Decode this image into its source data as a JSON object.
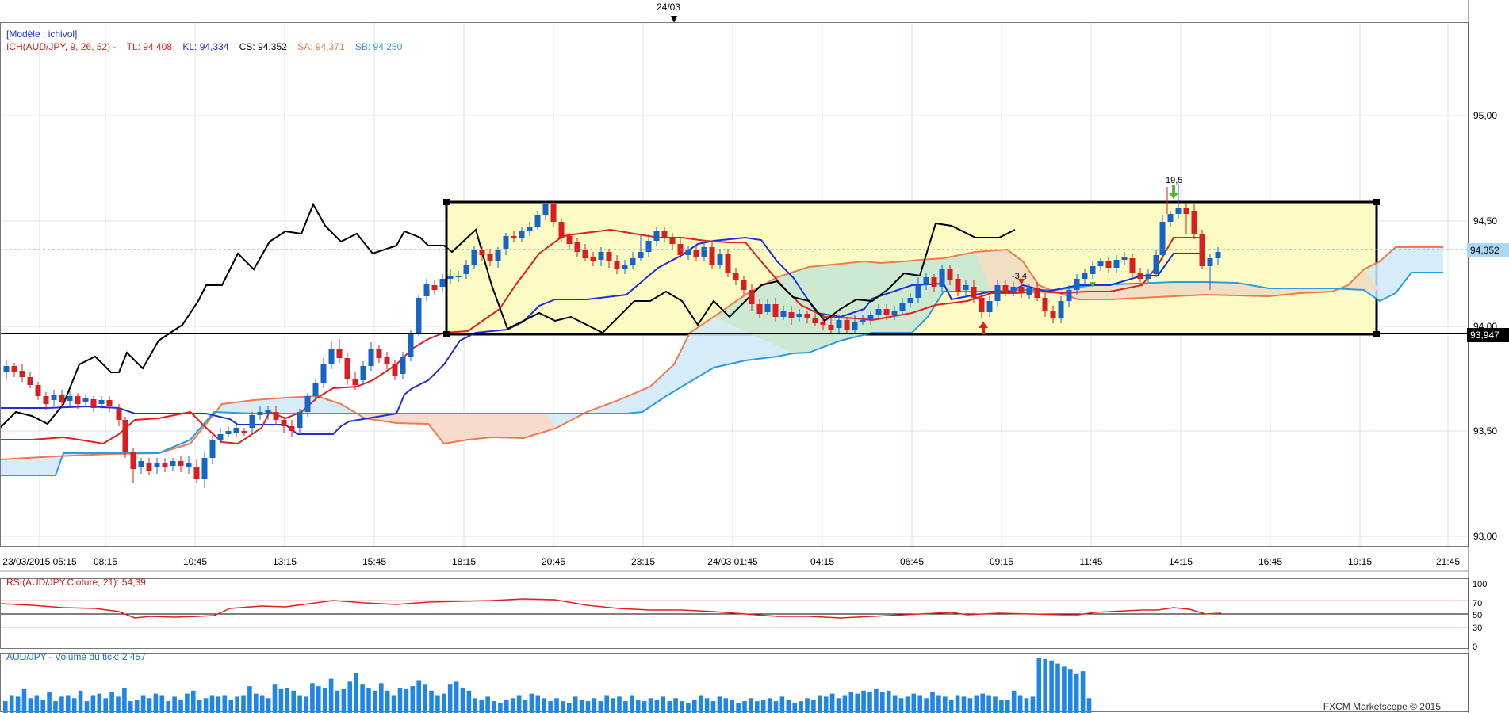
{
  "legend": {
    "model": "[Modèle : ichivol]",
    "ichimoku": [
      {
        "text": "ICH(AUD/JPY, 9, 26, 52) -",
        "color": "#e0201c"
      },
      {
        "text": "TL: 94,408",
        "color": "#e0201c"
      },
      {
        "text": "KL: 94,334",
        "color": "#1f2fd6"
      },
      {
        "text": "CS: 94,352",
        "color": "#000000"
      },
      {
        "text": "SA: 94,371",
        "color": "#f07a4a"
      },
      {
        "text": "SB: 94,250",
        "color": "#2a9ce0"
      }
    ],
    "rsi": "RSI(AUD/JPY.Cloture, 21): 54,39",
    "volume": "AUD/JPY - Volume du tick: 2 457"
  },
  "credit": "FXCM Marketscope © 2015",
  "date_marker": "24/03",
  "annotations": {
    "high": "19,5",
    "low": "-3,4"
  },
  "price_tags": {
    "last": "94,352",
    "box_bottom": "93,947"
  },
  "colors": {
    "tenkan": "#e0201c",
    "kijun": "#1f2fd6",
    "chikou": "#000000",
    "span_a": "#f07a4a",
    "span_b": "#2a9ce0",
    "bull": "#1565c8",
    "bear": "#d81e1e",
    "box_fill": "#fdfbc4",
    "volume": "#1f86e8",
    "rsi": "#e0201c"
  },
  "chart_data": [
    {
      "type": "candlestick",
      "title": "",
      "x_ticks": [
        "23/03/2015 05:15",
        "08:15",
        "10:45",
        "13:15",
        "15:45",
        "18:15",
        "20:45",
        "23:15",
        "24/03 01:45",
        "04:15",
        "06:45",
        "09:15",
        "11:45",
        "14:15",
        "16:45",
        "19:15",
        "21:45"
      ],
      "y_ticks": [
        "95,00",
        "94,50",
        "94,00",
        "93,50",
        "93,00"
      ],
      "ylim": [
        92.97,
        95.48
      ],
      "rectangle": {
        "top": 94.58,
        "bottom": 93.947
      },
      "horizontal_line": 93.947,
      "last_price": 94.352,
      "tenkan": 94.408,
      "kijun": 94.334,
      "chikou": 94.352,
      "span_a": 94.371,
      "span_b": 94.25
    },
    {
      "type": "line",
      "title": "RSI(AUD/JPY.Cloture, 21)",
      "y_ticks": [
        "100",
        "70",
        "50",
        "30",
        "0"
      ],
      "ylim": [
        0,
        100
      ],
      "last": 54.39
    },
    {
      "type": "bar",
      "title": "AUD/JPY - Volume du tick",
      "last": 2457
    }
  ]
}
